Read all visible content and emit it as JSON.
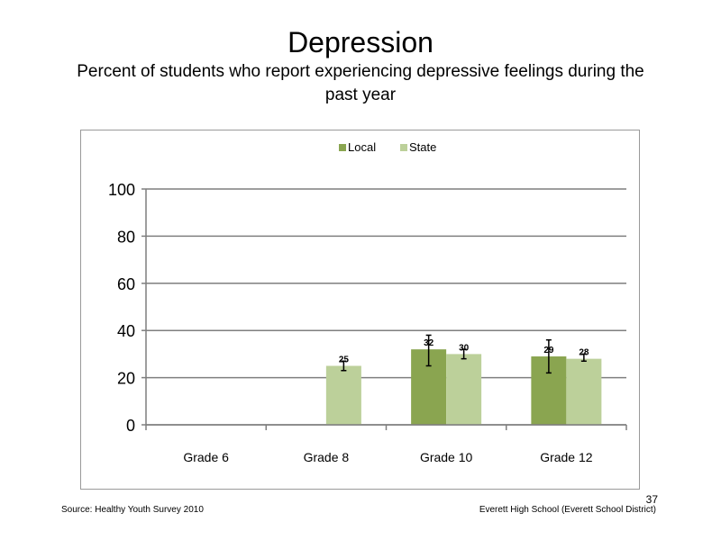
{
  "slide": {
    "title": "Depression",
    "subtitle": "Percent of students who report experiencing depressive feelings during the past year",
    "source": "Source: Healthy Youth Survey 2010",
    "school": "Everett High School (Everett School District)",
    "page_number": "37"
  },
  "chart_data": {
    "type": "bar",
    "categories": [
      "Grade 6",
      "Grade 8",
      "Grade 10",
      "Grade 12"
    ],
    "series": [
      {
        "name": "Local",
        "color": "#8aa550",
        "values": [
          null,
          null,
          32,
          29
        ],
        "labels": [
          "",
          "",
          "32",
          "29"
        ],
        "error_low": [
          null,
          null,
          25,
          22
        ],
        "error_high": [
          null,
          null,
          38,
          36
        ]
      },
      {
        "name": "State",
        "color": "#bcd09a",
        "values": [
          null,
          25,
          30,
          28
        ],
        "labels": [
          "",
          "25",
          "30",
          "28"
        ],
        "error_low": [
          null,
          23,
          28,
          27
        ],
        "error_high": [
          null,
          27,
          32,
          30
        ]
      }
    ],
    "ylim": [
      0,
      100
    ],
    "yticks": [
      "0",
      "20",
      "40",
      "60",
      "80",
      "100"
    ],
    "grid": true,
    "legend_position": "top"
  }
}
